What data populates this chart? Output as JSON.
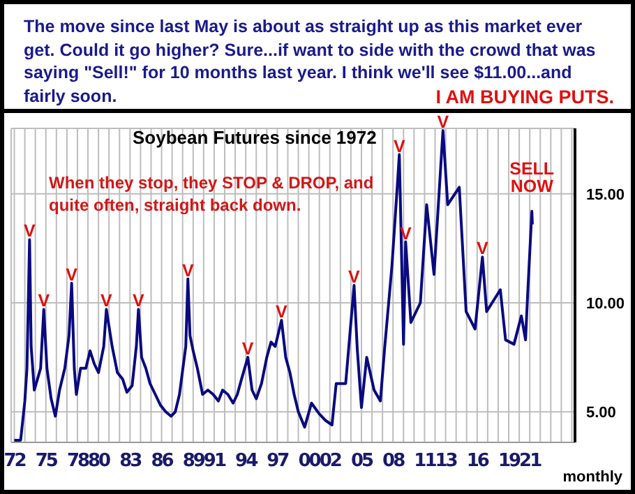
{
  "chart_data": {
    "type": "line",
    "title": "Soybean Futures since 1972",
    "annotations": [
      "The move since last May is about as straight up as this market ever get. Could it go higher? Sure...if want to side with the crowd that was saying \"Sell!\" for 10 months last year. I think we'll see $11.00...and fairly soon.",
      "I AM BUYING PUTS.",
      "When they stop, they STOP & DROP, and quite often, straight back down.",
      "monthly",
      {
        "text": "SELL NOW",
        "x": 2021.2,
        "y": 14.2
      },
      {
        "text": "V",
        "x": 1973.45,
        "y": 12.9
      },
      {
        "text": "V",
        "x": 1974.8,
        "y": 9.7
      },
      {
        "text": "V",
        "x": 1977.45,
        "y": 10.9
      },
      {
        "text": "V",
        "x": 1980.75,
        "y": 9.7
      },
      {
        "text": "V",
        "x": 1983.8,
        "y": 9.7
      },
      {
        "text": "V",
        "x": 1988.5,
        "y": 11.1
      },
      {
        "text": "V",
        "x": 1994.2,
        "y": 7.5
      },
      {
        "text": "V",
        "x": 1997.4,
        "y": 9.2
      },
      {
        "text": "V",
        "x": 2004.3,
        "y": 10.8
      },
      {
        "text": "V",
        "x": 2008.6,
        "y": 16.8
      },
      {
        "text": "V",
        "x": 2009.2,
        "y": 12.8
      },
      {
        "text": "V",
        "x": 2012.75,
        "y": 17.9
      },
      {
        "text": "V",
        "x": 2016.5,
        "y": 12.1
      }
    ],
    "x": [
      1972.0,
      1972.6,
      1973.0,
      1973.2,
      1973.45,
      1973.6,
      1973.9,
      1974.2,
      1974.5,
      1974.8,
      1975.1,
      1975.5,
      1975.9,
      1976.3,
      1976.8,
      1977.2,
      1977.45,
      1977.7,
      1977.9,
      1978.3,
      1978.8,
      1979.2,
      1979.6,
      1980.0,
      1980.5,
      1980.75,
      1981.3,
      1981.8,
      1982.3,
      1982.7,
      1983.2,
      1983.6,
      1983.8,
      1984.1,
      1984.5,
      1984.9,
      1985.4,
      1985.9,
      1986.4,
      1986.9,
      1987.3,
      1987.7,
      1988.3,
      1988.5,
      1988.7,
      1989.0,
      1989.4,
      1989.9,
      1990.4,
      1990.9,
      1991.4,
      1991.8,
      1992.3,
      1992.8,
      1993.2,
      1993.6,
      1994.2,
      1994.6,
      1995.0,
      1995.5,
      1996.0,
      1996.4,
      1996.8,
      1997.4,
      1997.8,
      1998.2,
      1998.6,
      1999.0,
      1999.6,
      2000.25,
      2001.0,
      2001.6,
      2002.2,
      2002.6,
      2003.5,
      2004.3,
      2004.6,
      2005.0,
      2005.5,
      2006.2,
      2006.8,
      2007.2,
      2007.9,
      2008.4,
      2008.6,
      2009.0,
      2009.2,
      2009.7,
      2010.6,
      2011.2,
      2011.9,
      2012.75,
      2013.2,
      2014.3,
      2014.95,
      2015.8,
      2016.5,
      2016.9,
      2018.2,
      2018.7,
      2019.5,
      2020.2,
      2020.6,
      2020.8,
      2021.2,
      2021.25
    ],
    "series": [
      {
        "color": "#0a0a80",
        "values": [
          3.7,
          3.7,
          5.5,
          7.0,
          12.9,
          8.0,
          6.0,
          6.5,
          7.0,
          9.7,
          7.0,
          5.6,
          4.8,
          6.0,
          7.0,
          8.5,
          10.9,
          7.0,
          5.8,
          7.0,
          7.0,
          7.8,
          7.2,
          6.8,
          8.0,
          9.7,
          8.0,
          6.8,
          6.5,
          5.9,
          6.2,
          8.0,
          9.7,
          7.5,
          7.0,
          6.3,
          5.8,
          5.3,
          5.0,
          4.8,
          5.0,
          5.8,
          8.0,
          11.1,
          8.5,
          7.8,
          7.0,
          5.8,
          6.0,
          5.8,
          5.5,
          6.0,
          5.8,
          5.4,
          5.8,
          6.5,
          7.5,
          6.0,
          5.6,
          6.3,
          7.5,
          8.2,
          8.0,
          9.2,
          7.5,
          6.8,
          5.8,
          5.0,
          4.3,
          5.4,
          4.9,
          4.6,
          4.4,
          6.3,
          6.3,
          10.8,
          7.9,
          5.2,
          7.5,
          6.0,
          5.5,
          7.9,
          11.7,
          15.3,
          16.8,
          8.1,
          12.8,
          9.1,
          10.0,
          14.5,
          11.3,
          17.9,
          14.5,
          15.3,
          9.6,
          8.8,
          12.1,
          9.6,
          10.6,
          8.3,
          8.1,
          9.4,
          8.3,
          10.4,
          14.2,
          13.6
        ]
      }
    ],
    "xlim": [
      1971.7,
      2025.3
    ],
    "xticks": [
      {
        "value": 1972,
        "label": "72"
      },
      {
        "value": 1973,
        "label": null
      },
      {
        "value": 1974,
        "label": null
      },
      {
        "value": 1975,
        "label": "75"
      },
      {
        "value": 1976,
        "label": null
      },
      {
        "value": 1977,
        "label": null
      },
      {
        "value": 1978,
        "label": "78"
      },
      {
        "value": 1979,
        "label": null
      },
      {
        "value": 1980,
        "label": "80"
      },
      {
        "value": 1981,
        "label": null
      },
      {
        "value": 1982,
        "label": null
      },
      {
        "value": 1983,
        "label": "83"
      },
      {
        "value": 1984,
        "label": null
      },
      {
        "value": 1985,
        "label": null
      },
      {
        "value": 1986,
        "label": "86"
      },
      {
        "value": 1987,
        "label": null
      },
      {
        "value": 1988,
        "label": null
      },
      {
        "value": 1989,
        "label": "89"
      },
      {
        "value": 1990,
        "label": null
      },
      {
        "value": 1991,
        "label": "91"
      },
      {
        "value": 1992,
        "label": null
      },
      {
        "value": 1993,
        "label": null
      },
      {
        "value": 1994,
        "label": "94"
      },
      {
        "value": 1995,
        "label": null
      },
      {
        "value": 1996,
        "label": null
      },
      {
        "value": 1997,
        "label": "97"
      },
      {
        "value": 1998,
        "label": null
      },
      {
        "value": 1999,
        "label": null
      },
      {
        "value": 2000,
        "label": "00"
      },
      {
        "value": 2001,
        "label": null
      },
      {
        "value": 2002,
        "label": "02"
      },
      {
        "value": 2003,
        "label": null
      },
      {
        "value": 2004,
        "label": null
      },
      {
        "value": 2005,
        "label": "05"
      },
      {
        "value": 2006,
        "label": null
      },
      {
        "value": 2007,
        "label": null
      },
      {
        "value": 2008,
        "label": "08"
      },
      {
        "value": 2009,
        "label": null
      },
      {
        "value": 2010,
        "label": null
      },
      {
        "value": 2011,
        "label": "11"
      },
      {
        "value": 2012,
        "label": null
      },
      {
        "value": 2013,
        "label": "13"
      },
      {
        "value": 2014,
        "label": null
      },
      {
        "value": 2015,
        "label": null
      },
      {
        "value": 2016,
        "label": "16"
      },
      {
        "value": 2017,
        "label": null
      },
      {
        "value": 2018,
        "label": null
      },
      {
        "value": 2019,
        "label": "19"
      },
      {
        "value": 2020,
        "label": null
      },
      {
        "value": 2021,
        "label": "21"
      },
      {
        "value": 2022,
        "label": null
      },
      {
        "value": 2023,
        "label": null
      },
      {
        "value": 2024,
        "label": null
      },
      {
        "value": 2025,
        "label": null
      }
    ],
    "ylim": [
      3.6,
      18
    ],
    "yticks": [
      {
        "value": 5,
        "label": "5.00"
      },
      {
        "value": 10,
        "label": "10.00"
      },
      {
        "value": 15,
        "label": "15.00"
      }
    ],
    "grid": true,
    "legend": false,
    "marker": "none",
    "line_style": "solid"
  }
}
